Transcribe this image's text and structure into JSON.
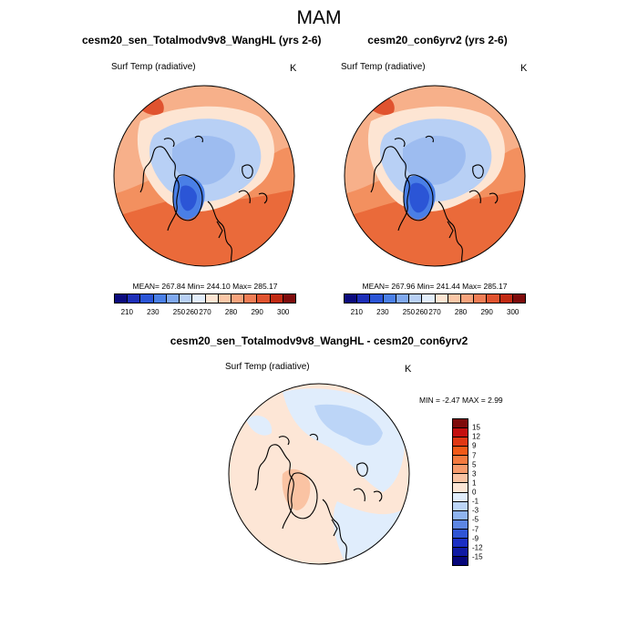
{
  "figure": {
    "title": "MAM"
  },
  "panels": [
    {
      "title": "cesm20_sen_Totalmodv9v8_WangHL (yrs 2-6)",
      "variable": "Surf Temp (radiative)",
      "units": "K",
      "stats": "MEAN= 267.84  Min= 244.10  Max= 285.17"
    },
    {
      "title": "cesm20_con6yrv2 (yrs 2-6)",
      "variable": "Surf Temp (radiative)",
      "units": "K",
      "stats": "MEAN= 267.96  Min= 241.44  Max= 285.17"
    }
  ],
  "diff_panel": {
    "title": "cesm20_sen_Totalmodv9v8_WangHL - cesm20_con6yrv2",
    "variable": "Surf Temp (radiative)",
    "units": "K",
    "stats": "MIN =  -2.47 MAX =   2.99"
  },
  "colorbar_abs": {
    "colors": [
      "#0b0b7e",
      "#1d2fb8",
      "#2b55d6",
      "#4a7fe6",
      "#7fa8ee",
      "#b8d0f5",
      "#e2eefc",
      "#fde5d3",
      "#fbc7a7",
      "#f7a37c",
      "#f07d55",
      "#e0532f",
      "#c12a12",
      "#7e0b0b"
    ],
    "labels": [
      "210",
      "230",
      "250",
      "260",
      "270",
      "280",
      "290",
      "300"
    ]
  },
  "colorbar_diff": {
    "colors": [
      "#7e0b0b",
      "#c40f0f",
      "#e03814",
      "#f25a18",
      "#f47a3f",
      "#f79b6c",
      "#fac3a3",
      "#fde6d6",
      "#e0edfc",
      "#bcd5f7",
      "#8fb4ef",
      "#5d86e3",
      "#2f55d5",
      "#1b2fc4",
      "#0f1aa3",
      "#06067a"
    ],
    "labels": [
      "15",
      "12",
      "9",
      "7",
      "5",
      "3",
      "1",
      "0",
      "-1",
      "-3",
      "-5",
      "-7",
      "-9",
      "-12",
      "-15"
    ]
  }
}
